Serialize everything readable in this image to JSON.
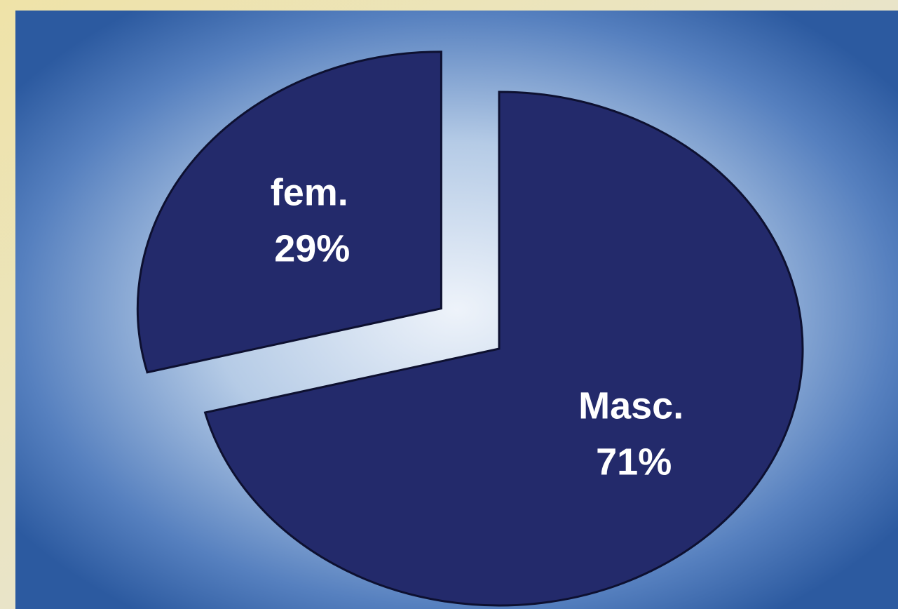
{
  "chart_data": {
    "type": "pie",
    "categories": [
      "fem.",
      "Masc."
    ],
    "values": [
      29,
      71
    ],
    "value_labels": [
      "29%",
      "71%"
    ],
    "color": "#232a6b"
  }
}
